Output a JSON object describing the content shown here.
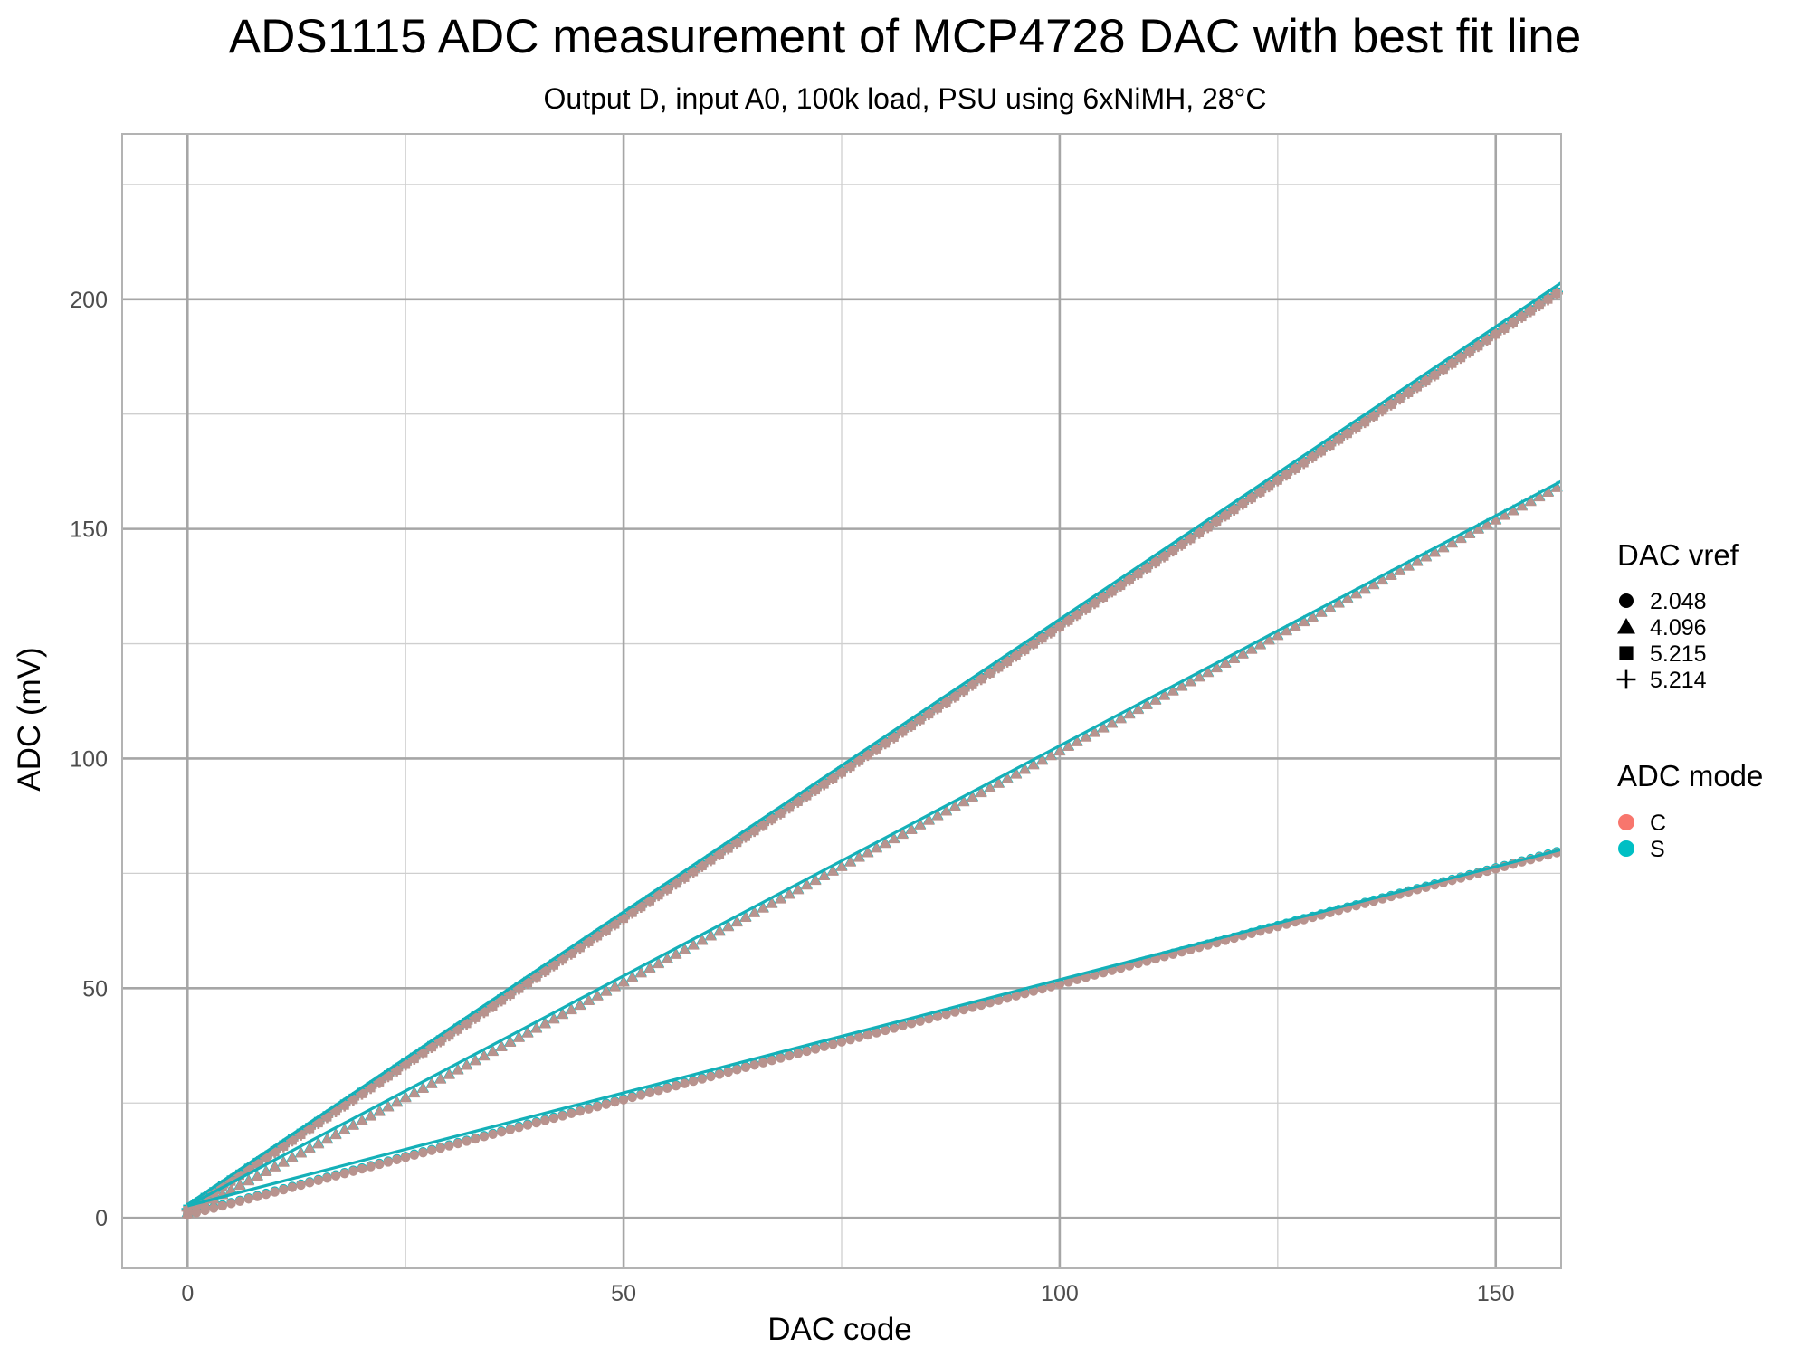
{
  "chart_data": {
    "type": "scatter",
    "title": "ADS1115 ADC measurement of MCP4728 DAC with best fit line",
    "subtitle": "Output D, input A0, 100k load, PSU using 6xNiMH, 28°C",
    "xlabel": "DAC code",
    "ylabel": "ADC (mV)",
    "xlim": [
      -7.5,
      157.5
    ],
    "ylim": [
      -11,
      236
    ],
    "x_ticks": [
      0,
      50,
      100,
      150
    ],
    "y_ticks": [
      0,
      50,
      100,
      150,
      200
    ],
    "grid": true,
    "x_points": {
      "start": 0,
      "end": 157,
      "step": 1
    },
    "colors": {
      "C": "#F8766D",
      "S": "#00BFC4",
      "overlap": "#b8938e",
      "fit_line": "#14b0b8"
    },
    "series": [
      {
        "dac_vref": "2.048",
        "adc_mode": "C",
        "shape": "circle",
        "slope": 0.5026,
        "intercept": 0.6
      },
      {
        "dac_vref": "2.048",
        "adc_mode": "S",
        "shape": "circle",
        "slope": 0.5026,
        "intercept": 0.8
      },
      {
        "dac_vref": "4.096",
        "adc_mode": "C",
        "shape": "triangle",
        "slope": 1.0062,
        "intercept": 1.0
      },
      {
        "dac_vref": "4.096",
        "adc_mode": "S",
        "shape": "triangle",
        "slope": 1.0062,
        "intercept": 1.2
      },
      {
        "dac_vref": "5.215",
        "adc_mode": "C",
        "shape": "square",
        "slope": 1.2718,
        "intercept": 1.6
      },
      {
        "dac_vref": "5.215",
        "adc_mode": "S",
        "shape": "square",
        "slope": 1.2718,
        "intercept": 1.9
      },
      {
        "dac_vref": "5.214",
        "adc_mode": "C",
        "shape": "plus",
        "slope": 1.2718,
        "intercept": 1.6
      },
      {
        "dac_vref": "5.214",
        "adc_mode": "S",
        "shape": "plus",
        "slope": 1.2718,
        "intercept": 1.9
      }
    ],
    "fit_lines": [
      {
        "dac_vref": "2.048",
        "slope": 0.4925,
        "intercept": 2.6
      },
      {
        "dac_vref": "4.096",
        "slope": 1.0017,
        "intercept": 2.6
      },
      {
        "dac_vref": "5.215",
        "slope": 1.2741,
        "intercept": 2.9
      }
    ],
    "legend": {
      "position": "right",
      "shape_title": "DAC vref",
      "shape_entries": [
        {
          "label": "2.048",
          "shape": "circle"
        },
        {
          "label": "4.096",
          "shape": "triangle"
        },
        {
          "label": "5.215",
          "shape": "square"
        },
        {
          "label": "5.214",
          "shape": "plus"
        }
      ],
      "color_title": "ADC mode",
      "color_entries": [
        {
          "label": "C",
          "color": "#F8766D"
        },
        {
          "label": "S",
          "color": "#00BFC4"
        }
      ]
    }
  }
}
